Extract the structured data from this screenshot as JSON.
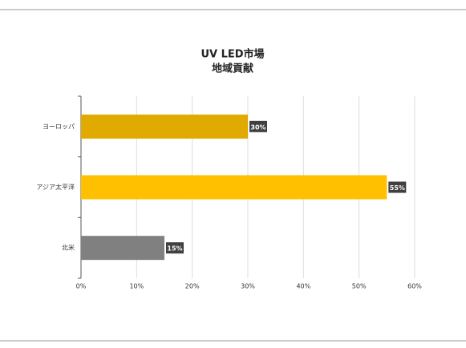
{
  "chart_data": {
    "type": "barh",
    "title": [
      "UV LED市場",
      "地域貢献"
    ],
    "categories": [
      "ヨーロッパ",
      "アジア太平洋",
      "北米"
    ],
    "values": [
      30,
      55,
      15
    ],
    "value_labels": [
      "30%",
      "55%",
      "15%"
    ],
    "colors": [
      "#e0aa00",
      "#ffc000",
      "#808080"
    ],
    "xlim": [
      0,
      60
    ],
    "xticks": [
      {
        "value": 0,
        "label": "0%"
      },
      {
        "value": 10,
        "label": "10%"
      },
      {
        "value": 20,
        "label": "20%"
      },
      {
        "value": 30,
        "label": "30%"
      },
      {
        "value": 40,
        "label": "40%"
      },
      {
        "value": 50,
        "label": "50%"
      },
      {
        "value": 60,
        "label": "60%"
      }
    ],
    "grid": true
  }
}
